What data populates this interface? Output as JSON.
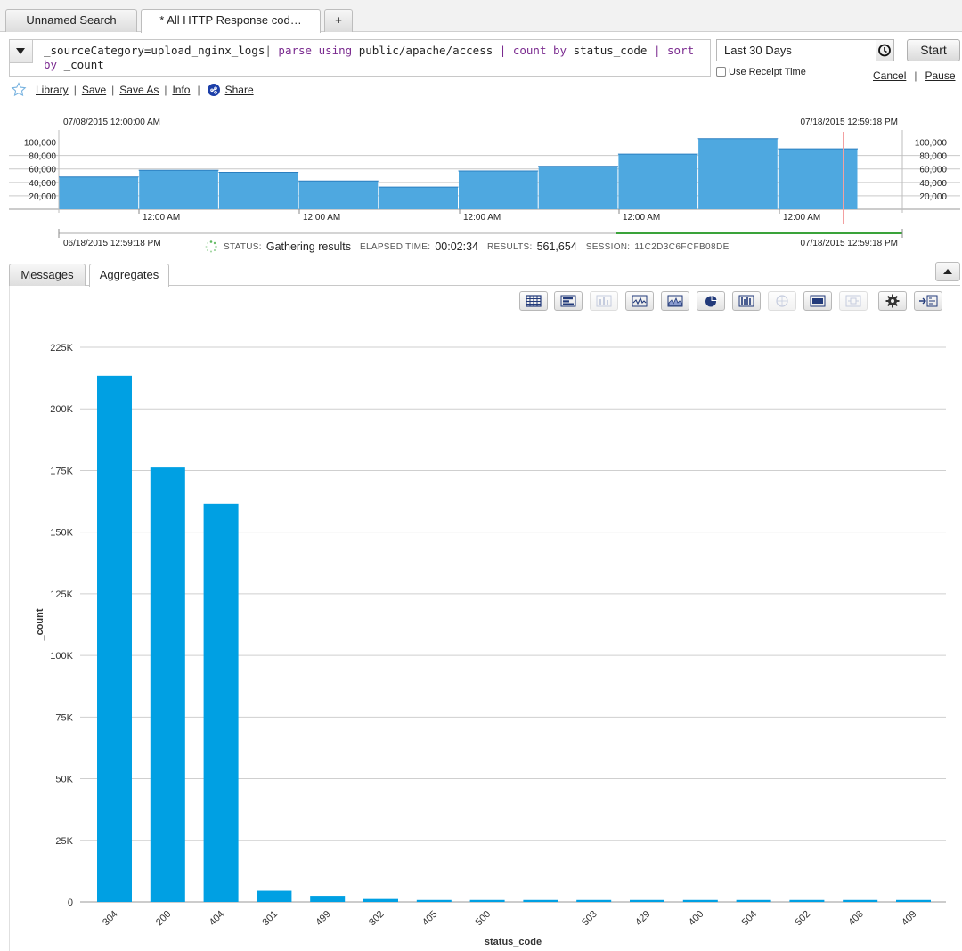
{
  "tabs": [
    {
      "label": "Unnamed Search"
    },
    {
      "label": "* All HTTP Response cod…"
    },
    {
      "label": "+"
    }
  ],
  "query": {
    "p1": "_sourceCategory=upload_nginx_logs",
    "p2": "|",
    "p3": "parse using",
    "p4": "public/apache/access",
    "p5": "|",
    "p6": "count by",
    "p7": "status_code",
    "p8": "|",
    "p9": "sort by",
    "p10": "_count"
  },
  "time_range": "Last 30 Days",
  "start_label": "Start",
  "receipt_label": "Use Receipt Time",
  "cancel_label": "Cancel",
  "pause_label": "Pause",
  "links": {
    "library": "Library",
    "save": "Save",
    "save_as": "Save As",
    "info": "Info",
    "share": "Share",
    "sep": "|"
  },
  "histogram": {
    "start_label": "07/08/2015 12:00:00 AM",
    "end_label": "07/18/2015 12:59:18 PM",
    "range_start": "06/18/2015 12:59:18 PM",
    "range_end": "07/18/2015 12:59:18 PM",
    "y_ticks": [
      "100,000",
      "80,000",
      "60,000",
      "40,000",
      "20,000"
    ],
    "y_values": [
      100000,
      80000,
      60000,
      40000,
      20000
    ],
    "y_max": 110000,
    "bars": [
      48000,
      58000,
      55000,
      42000,
      33000,
      57000,
      64000,
      82000,
      105000,
      90000
    ],
    "x_labels": [
      "12:00 AM",
      "12:00 AM",
      "12:00 AM",
      "12:00 AM",
      "12:00 AM"
    ],
    "bar_color": "#4ea8e0"
  },
  "status": {
    "status_label": "STATUS:",
    "status_value": "Gathering results",
    "elapsed_label": "ELAPSED TIME:",
    "elapsed_value": "00:02:34",
    "results_label": "RESULTS:",
    "results_value": "561,654",
    "session_label": "SESSION:",
    "session_value": "11C2D3C6FCFB08DE"
  },
  "result_tabs": {
    "messages": "Messages",
    "aggregates": "Aggregates"
  },
  "toolbar_icons": [
    "table-icon",
    "bar-chart-icon",
    "column-chart-icon",
    "line-chart-icon",
    "area-chart-icon",
    "pie-chart-icon",
    "combo-chart-icon",
    "map-icon",
    "single-value-icon",
    "box-plot-icon",
    "gear-icon",
    "add-to-dashboard-icon"
  ],
  "chart_data": {
    "type": "bar",
    "title": "",
    "xlabel": "status_code",
    "ylabel": "_count",
    "categories": [
      "304",
      "200",
      "404",
      "301",
      "499",
      "302",
      "405",
      "500",
      "",
      "503",
      "429",
      "400",
      "504",
      "502",
      "408",
      "409"
    ],
    "values": [
      213500,
      176200,
      161500,
      4500,
      2500,
      1200,
      800,
      800,
      800,
      800,
      800,
      800,
      800,
      800,
      800,
      800
    ],
    "ylim": [
      0,
      225000
    ],
    "y_ticks": [
      0,
      25000,
      50000,
      75000,
      100000,
      125000,
      150000,
      175000,
      200000,
      225000
    ],
    "y_tick_labels": [
      "0",
      "25K",
      "50K",
      "75K",
      "100K",
      "125K",
      "150K",
      "175K",
      "200K",
      "225K"
    ],
    "grid": true,
    "color": "#00a0e3"
  }
}
